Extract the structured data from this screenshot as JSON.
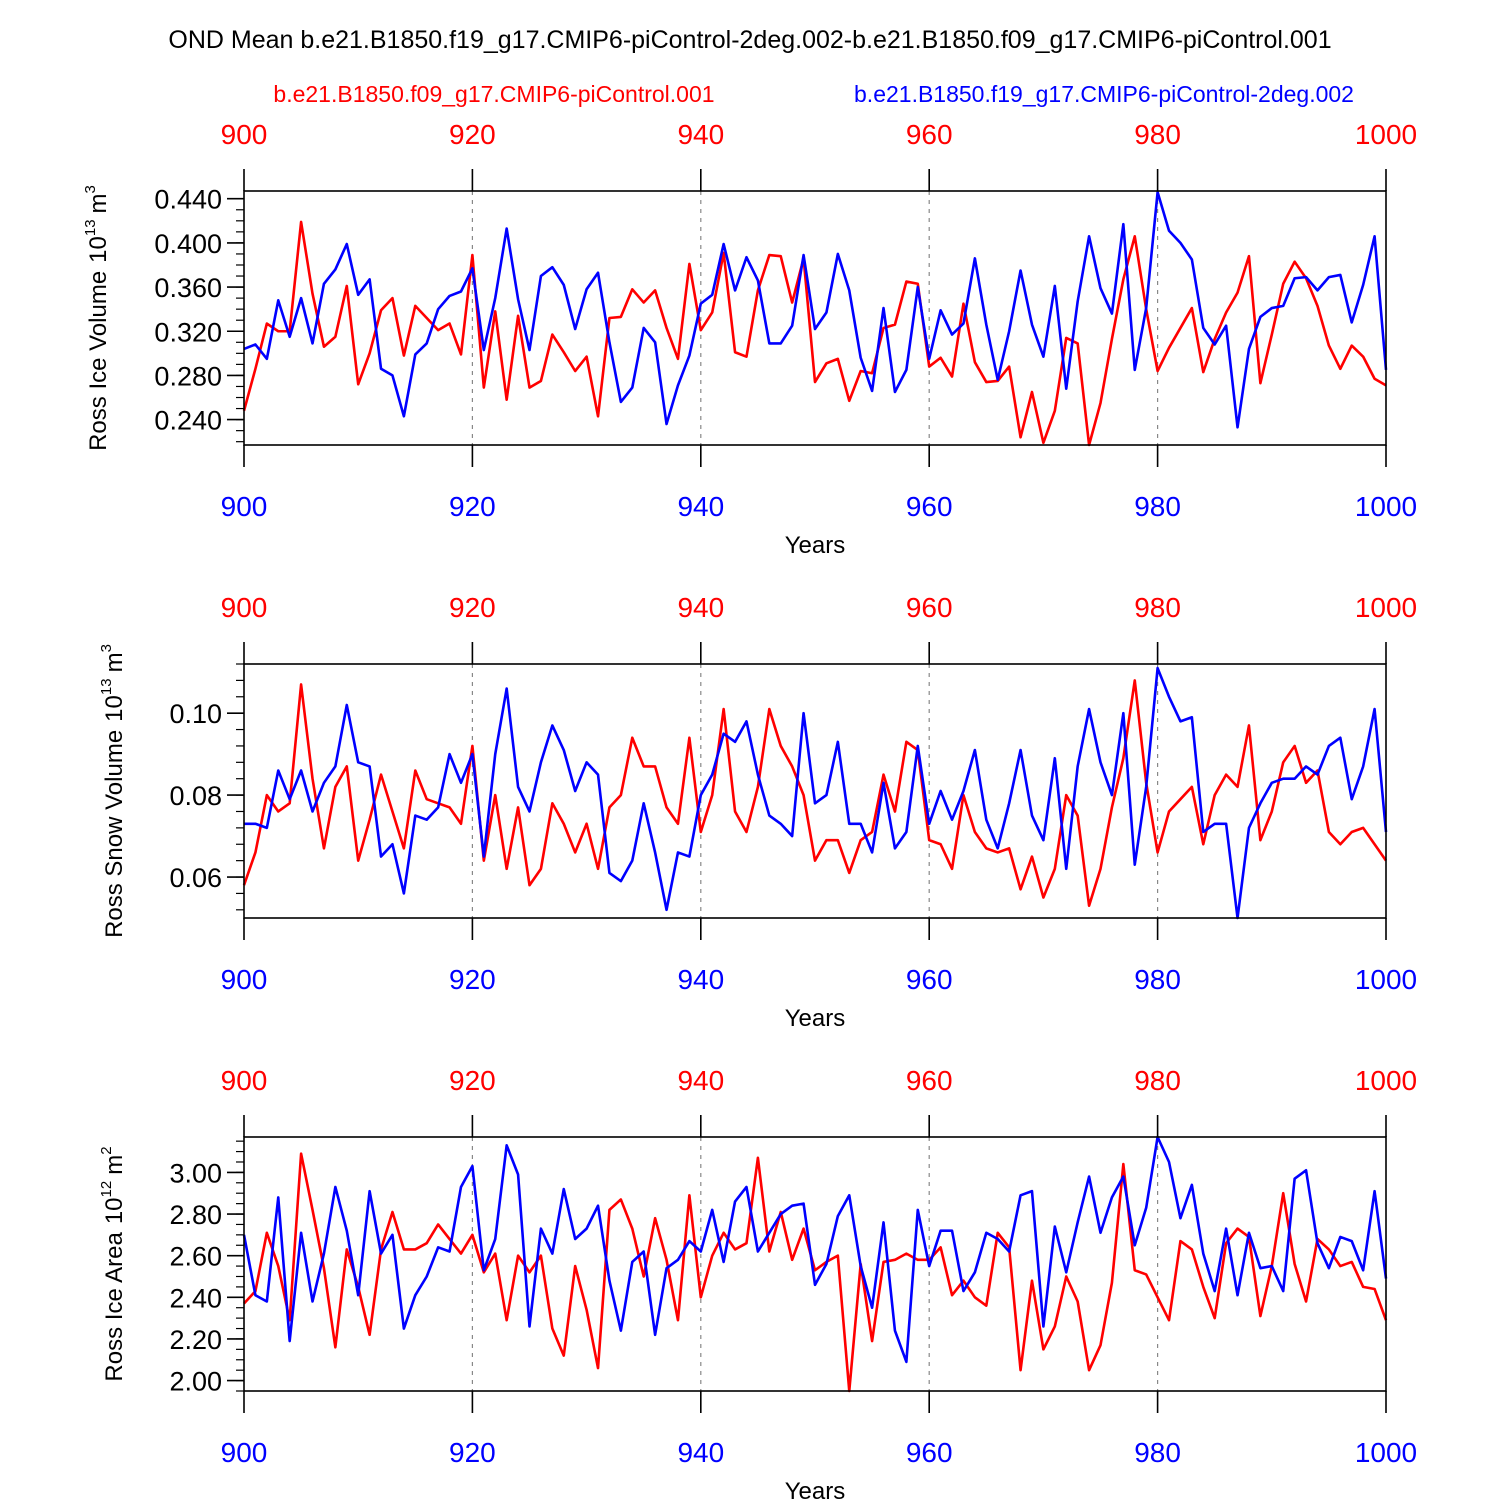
{
  "title": "OND Mean b.e21.B1850.f19_g17.CMIP6-piControl-2deg.002-b.e21.B1850.f09_g17.CMIP6-piControl.001",
  "legend": {
    "red_label": "b.e21.B1850.f09_g17.CMIP6-piControl.001",
    "blue_label": "b.e21.B1850.f19_g17.CMIP6-piControl-2deg.002"
  },
  "colors": {
    "red": "#ff0000",
    "blue": "#0000ff",
    "axis": "#000000",
    "grid": "#888888"
  },
  "chart_data": [
    {
      "type": "line",
      "title": "",
      "xlabel": "Years",
      "ylabel": "Ross Ice Volume",
      "ylabel_unit": "10",
      "ylabel_exp": "13",
      "ylabel_tail": "m",
      "ylabel_tail_exp": "3",
      "xlim": [
        900,
        1000
      ],
      "ylim": [
        0.217,
        0.447
      ],
      "x_ticks": [
        900,
        920,
        940,
        960,
        980,
        1000
      ],
      "x_tick_labels": [
        "900",
        "920",
        "940",
        "960",
        "980",
        "1000"
      ],
      "y_ticks": [
        0.24,
        0.28,
        0.32,
        0.36,
        0.4,
        0.44
      ],
      "y_tick_labels": [
        "0.240",
        "0.280",
        "0.320",
        "0.360",
        "0.400",
        "0.440"
      ],
      "y_minor_step": 0.01,
      "x_start": 900,
      "series": [
        {
          "name": "b.e21.B1850.f09_g17.CMIP6-piControl.001",
          "color": "red",
          "values": [
            0.248,
            0.286,
            0.327,
            0.32,
            0.32,
            0.419,
            0.354,
            0.306,
            0.315,
            0.361,
            0.272,
            0.3,
            0.339,
            0.35,
            0.298,
            0.343,
            0.332,
            0.321,
            0.327,
            0.299,
            0.389,
            0.269,
            0.338,
            0.258,
            0.334,
            0.269,
            0.275,
            0.317,
            0.301,
            0.284,
            0.297,
            0.243,
            0.332,
            0.333,
            0.358,
            0.346,
            0.357,
            0.323,
            0.295,
            0.381,
            0.321,
            0.337,
            0.391,
            0.301,
            0.297,
            0.357,
            0.389,
            0.388,
            0.346,
            0.386,
            0.274,
            0.291,
            0.295,
            0.257,
            0.284,
            0.282,
            0.323,
            0.326,
            0.365,
            0.363,
            0.288,
            0.296,
            0.279,
            0.345,
            0.292,
            0.274,
            0.275,
            0.288,
            0.224,
            0.265,
            0.219,
            0.248,
            0.314,
            0.309,
            0.217,
            0.255,
            0.313,
            0.367,
            0.406,
            0.34,
            0.284,
            0.305,
            0.323,
            0.341,
            0.283,
            0.313,
            0.337,
            0.355,
            0.388,
            0.273,
            0.317,
            0.363,
            0.383,
            0.368,
            0.343,
            0.307,
            0.286,
            0.307,
            0.297,
            0.277,
            0.271
          ]
        },
        {
          "name": "b.e21.B1850.f19_g17.CMIP6-piControl-2deg.002",
          "color": "blue",
          "values": [
            0.304,
            0.308,
            0.295,
            0.348,
            0.315,
            0.35,
            0.309,
            0.363,
            0.376,
            0.399,
            0.353,
            0.367,
            0.286,
            0.28,
            0.243,
            0.299,
            0.309,
            0.34,
            0.352,
            0.356,
            0.377,
            0.303,
            0.35,
            0.413,
            0.349,
            0.303,
            0.37,
            0.378,
            0.362,
            0.322,
            0.358,
            0.373,
            0.31,
            0.256,
            0.269,
            0.323,
            0.31,
            0.236,
            0.271,
            0.298,
            0.345,
            0.353,
            0.399,
            0.357,
            0.387,
            0.366,
            0.309,
            0.309,
            0.325,
            0.389,
            0.322,
            0.337,
            0.39,
            0.357,
            0.296,
            0.266,
            0.341,
            0.265,
            0.285,
            0.36,
            0.295,
            0.339,
            0.317,
            0.327,
            0.386,
            0.326,
            0.276,
            0.32,
            0.375,
            0.326,
            0.297,
            0.361,
            0.268,
            0.347,
            0.406,
            0.359,
            0.336,
            0.417,
            0.285,
            0.341,
            0.446,
            0.411,
            0.4,
            0.385,
            0.323,
            0.308,
            0.325,
            0.233,
            0.304,
            0.333,
            0.341,
            0.343,
            0.368,
            0.369,
            0.357,
            0.369,
            0.371,
            0.328,
            0.362,
            0.406,
            0.285
          ]
        }
      ]
    },
    {
      "type": "line",
      "title": "",
      "xlabel": "Years",
      "ylabel": "Ross Snow Volume",
      "ylabel_unit": "10",
      "ylabel_exp": "13",
      "ylabel_tail": "m",
      "ylabel_tail_exp": "3",
      "xlim": [
        900,
        1000
      ],
      "ylim": [
        0.05,
        0.112
      ],
      "x_ticks": [
        900,
        920,
        940,
        960,
        980,
        1000
      ],
      "x_tick_labels": [
        "900",
        "920",
        "940",
        "960",
        "980",
        "1000"
      ],
      "y_ticks": [
        0.06,
        0.08,
        0.1
      ],
      "y_tick_labels": [
        "0.06",
        "0.08",
        "0.10"
      ],
      "y_minor_step": 0.004,
      "x_start": 900,
      "series": [
        {
          "name": "b.e21.B1850.f09_g17.CMIP6-piControl.001",
          "color": "red",
          "values": [
            0.058,
            0.066,
            0.08,
            0.076,
            0.078,
            0.107,
            0.084,
            0.067,
            0.082,
            0.087,
            0.064,
            0.074,
            0.085,
            0.076,
            0.067,
            0.086,
            0.079,
            0.078,
            0.077,
            0.073,
            0.092,
            0.064,
            0.08,
            0.062,
            0.077,
            0.058,
            0.062,
            0.078,
            0.073,
            0.066,
            0.073,
            0.062,
            0.077,
            0.08,
            0.094,
            0.087,
            0.087,
            0.077,
            0.073,
            0.094,
            0.071,
            0.08,
            0.101,
            0.076,
            0.071,
            0.082,
            0.101,
            0.092,
            0.087,
            0.08,
            0.064,
            0.069,
            0.069,
            0.061,
            0.069,
            0.071,
            0.085,
            0.076,
            0.093,
            0.091,
            0.069,
            0.068,
            0.062,
            0.08,
            0.071,
            0.067,
            0.066,
            0.067,
            0.057,
            0.065,
            0.055,
            0.062,
            0.08,
            0.075,
            0.053,
            0.062,
            0.077,
            0.089,
            0.108,
            0.083,
            0.066,
            0.076,
            0.079,
            0.082,
            0.068,
            0.08,
            0.085,
            0.082,
            0.097,
            0.069,
            0.076,
            0.088,
            0.092,
            0.083,
            0.086,
            0.071,
            0.068,
            0.071,
            0.072,
            0.068,
            0.064
          ]
        },
        {
          "name": "b.e21.B1850.f19_g17.CMIP6-piControl-2deg.002",
          "color": "blue",
          "values": [
            0.073,
            0.073,
            0.072,
            0.086,
            0.079,
            0.086,
            0.076,
            0.083,
            0.087,
            0.102,
            0.088,
            0.087,
            0.065,
            0.068,
            0.056,
            0.075,
            0.074,
            0.077,
            0.09,
            0.083,
            0.09,
            0.065,
            0.09,
            0.106,
            0.082,
            0.076,
            0.088,
            0.097,
            0.091,
            0.081,
            0.088,
            0.085,
            0.061,
            0.059,
            0.064,
            0.078,
            0.066,
            0.052,
            0.066,
            0.065,
            0.08,
            0.085,
            0.095,
            0.093,
            0.098,
            0.085,
            0.075,
            0.073,
            0.07,
            0.1,
            0.078,
            0.08,
            0.093,
            0.073,
            0.073,
            0.066,
            0.083,
            0.067,
            0.071,
            0.092,
            0.073,
            0.081,
            0.074,
            0.081,
            0.091,
            0.074,
            0.067,
            0.078,
            0.091,
            0.075,
            0.069,
            0.089,
            0.062,
            0.087,
            0.101,
            0.088,
            0.08,
            0.1,
            0.063,
            0.082,
            0.111,
            0.104,
            0.098,
            0.099,
            0.071,
            0.073,
            0.073,
            0.05,
            0.072,
            0.078,
            0.083,
            0.084,
            0.084,
            0.087,
            0.085,
            0.092,
            0.094,
            0.079,
            0.087,
            0.101,
            0.071
          ]
        }
      ]
    },
    {
      "type": "line",
      "title": "",
      "xlabel": "Years",
      "ylabel": "Ross Ice Area",
      "ylabel_unit": "10",
      "ylabel_exp": "12",
      "ylabel_tail": "m",
      "ylabel_tail_exp": "2",
      "xlim": [
        900,
        1000
      ],
      "ylim": [
        1.95,
        3.17
      ],
      "x_ticks": [
        900,
        920,
        940,
        960,
        980,
        1000
      ],
      "x_tick_labels": [
        "900",
        "920",
        "940",
        "960",
        "980",
        "1000"
      ],
      "y_ticks": [
        2.0,
        2.2,
        2.4,
        2.6,
        2.8,
        3.0
      ],
      "y_tick_labels": [
        "2.00",
        "2.20",
        "2.40",
        "2.60",
        "2.80",
        "3.00"
      ],
      "y_minor_step": 0.05,
      "x_start": 900,
      "series": [
        {
          "name": "b.e21.B1850.f09_g17.CMIP6-piControl.001",
          "color": "red",
          "values": [
            2.37,
            2.43,
            2.71,
            2.55,
            2.29,
            3.09,
            2.82,
            2.54,
            2.16,
            2.63,
            2.45,
            2.22,
            2.63,
            2.81,
            2.63,
            2.63,
            2.66,
            2.75,
            2.68,
            2.61,
            2.7,
            2.52,
            2.61,
            2.29,
            2.6,
            2.52,
            2.6,
            2.25,
            2.12,
            2.55,
            2.34,
            2.06,
            2.82,
            2.87,
            2.73,
            2.5,
            2.78,
            2.58,
            2.29,
            2.89,
            2.4,
            2.6,
            2.71,
            2.63,
            2.66,
            3.07,
            2.62,
            2.81,
            2.58,
            2.73,
            2.53,
            2.57,
            2.6,
            1.95,
            2.56,
            2.19,
            2.57,
            2.58,
            2.61,
            2.58,
            2.58,
            2.64,
            2.41,
            2.48,
            2.4,
            2.36,
            2.71,
            2.64,
            2.05,
            2.48,
            2.15,
            2.26,
            2.5,
            2.38,
            2.05,
            2.17,
            2.47,
            3.04,
            2.53,
            2.51,
            2.4,
            2.29,
            2.67,
            2.63,
            2.45,
            2.3,
            2.66,
            2.73,
            2.69,
            2.31,
            2.55,
            2.9,
            2.56,
            2.38,
            2.68,
            2.63,
            2.55,
            2.57,
            2.45,
            2.44,
            2.29
          ]
        },
        {
          "name": "b.e21.B1850.f19_g17.CMIP6-piControl-2deg.002",
          "color": "blue",
          "values": [
            2.7,
            2.41,
            2.38,
            2.88,
            2.19,
            2.71,
            2.38,
            2.61,
            2.93,
            2.72,
            2.41,
            2.91,
            2.61,
            2.7,
            2.25,
            2.41,
            2.5,
            2.64,
            2.62,
            2.93,
            3.03,
            2.53,
            2.68,
            3.13,
            2.99,
            2.26,
            2.73,
            2.61,
            2.92,
            2.68,
            2.73,
            2.84,
            2.48,
            2.24,
            2.57,
            2.62,
            2.22,
            2.54,
            2.58,
            2.67,
            2.62,
            2.82,
            2.57,
            2.86,
            2.93,
            2.62,
            2.71,
            2.8,
            2.84,
            2.85,
            2.46,
            2.56,
            2.79,
            2.89,
            2.55,
            2.35,
            2.76,
            2.24,
            2.09,
            2.82,
            2.55,
            2.72,
            2.72,
            2.43,
            2.52,
            2.71,
            2.68,
            2.62,
            2.89,
            2.91,
            2.26,
            2.74,
            2.52,
            2.76,
            2.98,
            2.71,
            2.88,
            2.98,
            2.65,
            2.83,
            3.17,
            3.05,
            2.78,
            2.94,
            2.61,
            2.43,
            2.73,
            2.41,
            2.71,
            2.54,
            2.55,
            2.43,
            2.97,
            3.01,
            2.66,
            2.54,
            2.69,
            2.67,
            2.53,
            2.91,
            2.49
          ]
        }
      ]
    }
  ]
}
